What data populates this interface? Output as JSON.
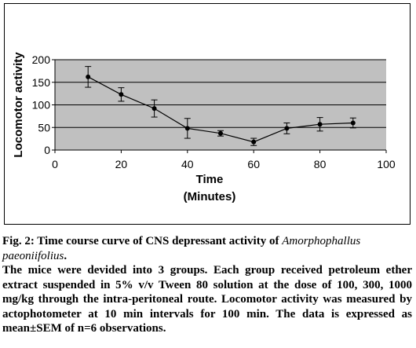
{
  "chart_data": {
    "type": "line",
    "xlabel": "Time",
    "xlabel_unit": "(Minutes)",
    "ylabel": "Locomotor activity",
    "xlim": [
      0,
      100
    ],
    "ylim": [
      0,
      200
    ],
    "xticks": [
      "0",
      "20",
      "40",
      "60",
      "80",
      "100"
    ],
    "yticks": [
      "0",
      "50",
      "100",
      "150",
      "200"
    ],
    "grid": "horizontal",
    "series": [
      {
        "x": [
          10,
          20,
          30,
          40,
          50,
          60,
          70,
          80,
          90
        ],
        "y": [
          162,
          123,
          92,
          48,
          37,
          18,
          48,
          57,
          60
        ],
        "error": [
          23,
          15,
          19,
          22,
          6,
          8,
          12,
          15,
          11
        ]
      }
    ],
    "colors": {
      "plot_area": "#c0c0c0",
      "line": "#000000"
    }
  },
  "caption": {
    "fig_label": "Fig. 2: Time course curve of CNS depressant activity of ",
    "species_genus": "Amorphophallus",
    "species_epithet": "paeoniifolius",
    "title_end": ".",
    "body": "The mice were devided into 3 groups. Each group received petroleum ether extract suspended in 5% v/v Tween 80 solution at the dose of 100, 300, 1000 mg/kg through the intra-peritoneal route. Locomotor activity was measured by actophotometer at 10 min intervals for 100 min. The data is expressed as mean±SEM of n=6 observations."
  }
}
